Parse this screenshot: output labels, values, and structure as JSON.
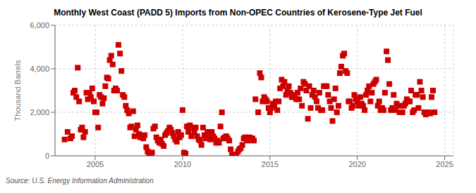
{
  "chart_data": {
    "type": "scatter",
    "title": "Monthly West Coast (PADD 5) Imports from Non-OPEC Countries of Kerosene-Type Jet Fuel",
    "ylabel": "Thousand Barrels",
    "source": "Source: U.S. Energy Information Administration",
    "color": "#cc0000",
    "marker": "square",
    "grid": true,
    "xlim": [
      2002.7,
      2025.5
    ],
    "xticks": [
      2005,
      2010,
      2015,
      2020,
      2025
    ],
    "ylim": [
      0,
      6000
    ],
    "yticks": [
      0,
      {
        "value": 2000,
        "label": "2,000"
      },
      {
        "value": 4000,
        "label": "4,000"
      },
      {
        "value": 6000,
        "label": "6,000"
      }
    ],
    "x": [
      2003.25,
      2003.42,
      2003.58,
      2003.67,
      2003.75,
      2003.83,
      2003.92,
      2004.0,
      2004.08,
      2004.17,
      2004.25,
      2004.33,
      2004.42,
      2004.5,
      2004.58,
      2004.67,
      2004.75,
      2004.83,
      2004.92,
      2005.0,
      2005.08,
      2005.17,
      2005.25,
      2005.33,
      2005.42,
      2005.5,
      2005.58,
      2005.67,
      2005.75,
      2005.83,
      2005.92,
      2006.0,
      2006.08,
      2006.17,
      2006.25,
      2006.33,
      2006.42,
      2006.5,
      2006.58,
      2006.67,
      2006.75,
      2006.83,
      2006.92,
      2007.0,
      2007.08,
      2007.17,
      2007.25,
      2007.33,
      2007.42,
      2007.5,
      2007.58,
      2007.67,
      2007.75,
      2007.83,
      2007.92,
      2008.0,
      2008.08,
      2008.17,
      2008.25,
      2008.33,
      2008.42,
      2008.5,
      2008.58,
      2008.67,
      2008.75,
      2008.83,
      2008.92,
      2009.0,
      2009.08,
      2009.17,
      2009.25,
      2009.33,
      2009.42,
      2009.5,
      2009.58,
      2009.67,
      2009.75,
      2009.83,
      2009.92,
      2010.0,
      2010.08,
      2010.17,
      2010.25,
      2010.33,
      2010.42,
      2010.5,
      2010.58,
      2010.67,
      2010.75,
      2010.83,
      2010.92,
      2011.0,
      2011.08,
      2011.17,
      2011.25,
      2011.33,
      2011.42,
      2011.5,
      2011.58,
      2011.67,
      2011.75,
      2011.83,
      2011.92,
      2012.0,
      2012.08,
      2012.17,
      2012.25,
      2012.33,
      2012.42,
      2012.5,
      2012.58,
      2012.67,
      2012.75,
      2012.83,
      2012.92,
      2013.0,
      2013.08,
      2013.17,
      2013.25,
      2013.33,
      2013.42,
      2013.5,
      2013.58,
      2013.67,
      2013.75,
      2013.83,
      2013.92,
      2014.0,
      2014.08,
      2014.17,
      2014.33,
      2014.42,
      2014.5,
      2014.58,
      2014.67,
      2014.75,
      2014.83,
      2014.92,
      2015.0,
      2015.08,
      2015.17,
      2015.25,
      2015.33,
      2015.42,
      2015.5,
      2015.58,
      2015.67,
      2015.75,
      2015.83,
      2015.92,
      2016.0,
      2016.08,
      2016.17,
      2016.25,
      2016.33,
      2016.42,
      2016.5,
      2016.58,
      2016.67,
      2016.75,
      2016.83,
      2016.92,
      2017.0,
      2017.08,
      2017.17,
      2017.25,
      2017.33,
      2017.42,
      2017.5,
      2017.58,
      2017.67,
      2017.75,
      2017.83,
      2017.92,
      2018.0,
      2018.08,
      2018.17,
      2018.25,
      2018.33,
      2018.42,
      2018.5,
      2018.58,
      2018.67,
      2018.75,
      2018.83,
      2018.92,
      2019.0,
      2019.08,
      2019.17,
      2019.25,
      2019.33,
      2019.42,
      2019.5,
      2019.58,
      2019.67,
      2019.75,
      2019.83,
      2019.92,
      2020.0,
      2020.08,
      2020.17,
      2020.25,
      2020.33,
      2020.42,
      2020.5,
      2020.58,
      2020.67,
      2020.75,
      2020.83,
      2020.92,
      2021.0,
      2021.08,
      2021.17,
      2021.25,
      2021.33,
      2021.42,
      2021.5,
      2021.58,
      2021.67,
      2021.75,
      2021.83,
      2021.92,
      2022.0,
      2022.08,
      2022.17,
      2022.25,
      2022.33,
      2022.42,
      2022.5,
      2022.58,
      2022.67,
      2022.75,
      2022.83,
      2022.92,
      2023.0,
      2023.08,
      2023.17,
      2023.25,
      2023.33,
      2023.42,
      2023.5,
      2023.58,
      2023.67,
      2023.75,
      2023.83,
      2023.92,
      2024.0,
      2024.08,
      2024.17,
      2024.25,
      2024.33,
      2024.42
    ],
    "values": [
      750,
      1100,
      800,
      900,
      2900,
      3000,
      2700,
      4050,
      2500,
      1200,
      1300,
      850,
      1100,
      2900,
      2600,
      2900,
      2700,
      3100,
      2500,
      2000,
      2000,
      1300,
      2800,
      2700,
      2400,
      2650,
      3200,
      3600,
      3550,
      4400,
      4600,
      4200,
      3000,
      3100,
      3000,
      5100,
      4700,
      3900,
      2800,
      2700,
      2300,
      2100,
      1950,
      1300,
      1350,
      2050,
      900,
      1200,
      1400,
      1000,
      850,
      900,
      800,
      950,
      400,
      200,
      100,
      50,
      150,
      1250,
      1350,
      850,
      700,
      600,
      750,
      550,
      450,
      950,
      1050,
      1150,
      1300,
      1200,
      1050,
      900,
      750,
      650,
      1100,
      850,
      950,
      2100,
      150,
      100,
      1350,
      1100,
      1400,
      900,
      1300,
      1100,
      1300,
      900,
      750,
      700,
      500,
      1300,
      950,
      800,
      1100,
      850,
      750,
      1100,
      900,
      800,
      600,
      700,
      600,
      1350,
      2000,
      800,
      850,
      900,
      800,
      700,
      300,
      50,
      50,
      50,
      50,
      200,
      300,
      350,
      500,
      800,
      850,
      750,
      700,
      850,
      800,
      800,
      700,
      2600,
      2000,
      3800,
      3600,
      2500,
      2700,
      2600,
      2500,
      2200,
      2000,
      2200,
      2400,
      2300,
      2500,
      2100,
      2500,
      3100,
      3500,
      3200,
      3400,
      2800,
      3000,
      3200,
      2900,
      2700,
      2700,
      2800,
      2600,
      2900,
      2600,
      3100,
      2300,
      3400,
      3300,
      3000,
      1700,
      3200,
      2200,
      2800,
      3000,
      2700,
      2500,
      2200,
      2900,
      2100,
      2100,
      3200,
      3200,
      3200,
      2800,
      2500,
      2200,
      1600,
      2600,
      3100,
      2000,
      2300,
      3800,
      4100,
      4600,
      4700,
      3900,
      3800,
      2500,
      2500,
      2200,
      2300,
      2800,
      2600,
      2500,
      2300,
      2700,
      2400,
      2300,
      2100,
      2800,
      3000,
      3200,
      2500,
      2900,
      3300,
      3400,
      3500,
      2300,
      2500,
      2100,
      2200,
      2100,
      2900,
      4800,
      4400,
      3300,
      2100,
      2200,
      2800,
      2100,
      2400,
      2300,
      2000,
      2300,
      2000,
      2300,
      2400,
      2600,
      2500,
      2500,
      3000,
      2000,
      2100,
      2800,
      2800,
      2200,
      3400,
      3000,
      2700,
      2000,
      1900,
      2000,
      2000,
      1950,
      2700,
      3000,
      2000
    ]
  }
}
